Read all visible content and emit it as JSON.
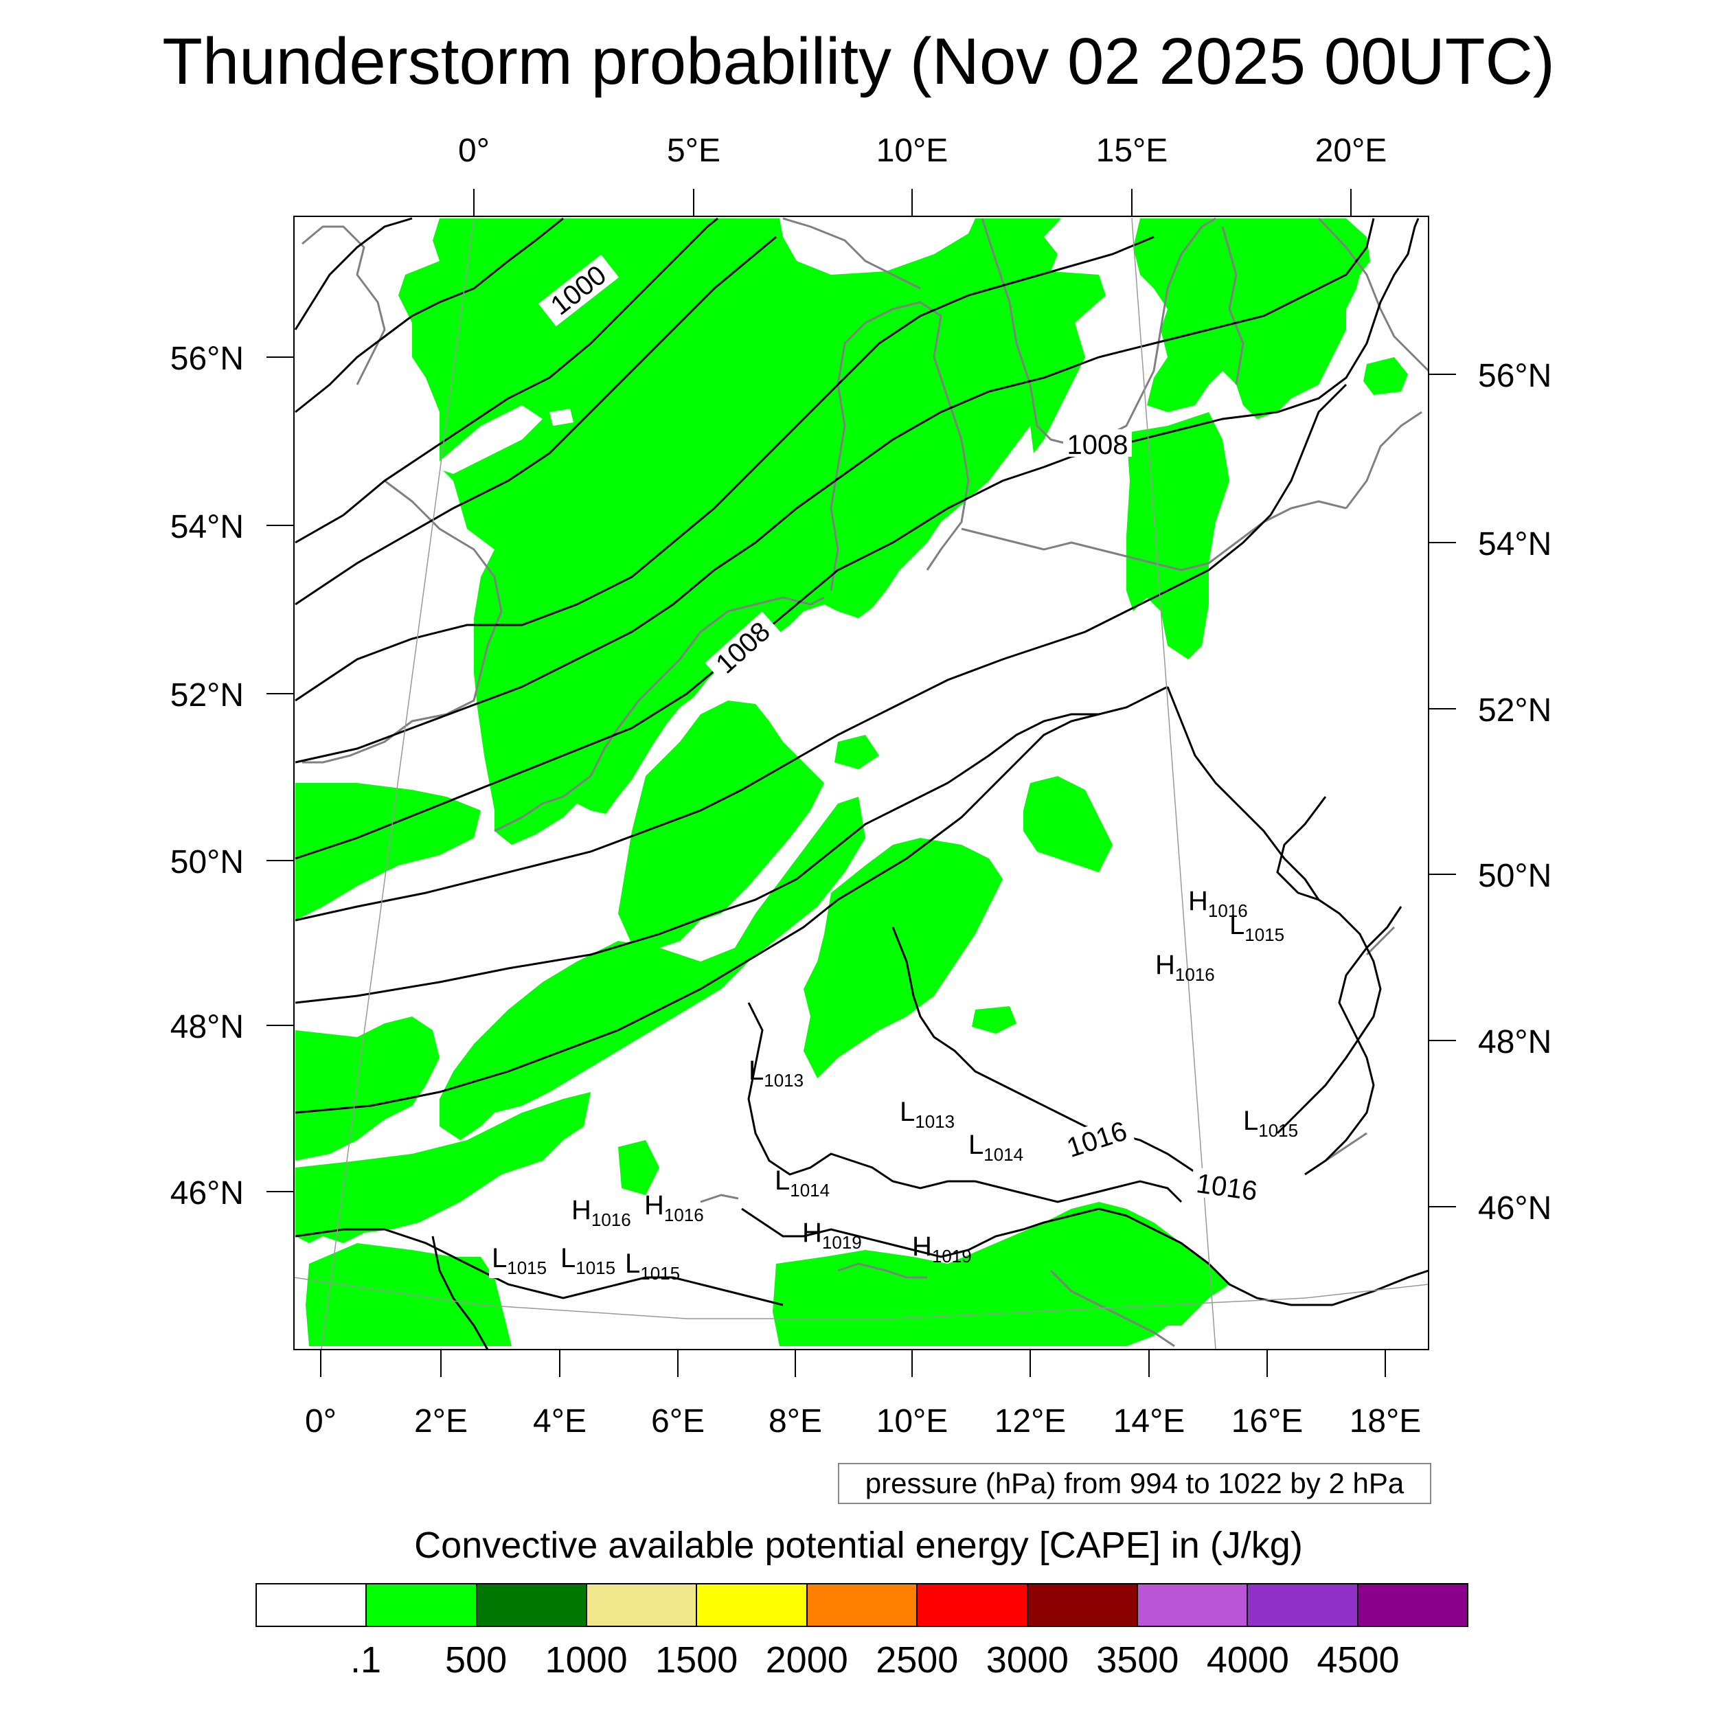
{
  "title": "Thunderstorm probability (Nov 02 2025 00UTC)",
  "top_lon_labels": [
    "0°",
    "5°E",
    "10°E",
    "15°E",
    "20°E"
  ],
  "bottom_lon_labels": [
    "0°",
    "2°E",
    "4°E",
    "6°E",
    "8°E",
    "10°E",
    "12°E",
    "14°E",
    "16°E",
    "18°E"
  ],
  "left_lat_labels": [
    "56°N",
    "54°N",
    "52°N",
    "50°N",
    "48°N",
    "46°N"
  ],
  "right_lat_labels": [
    "56°N",
    "54°N",
    "52°N",
    "50°N",
    "48°N",
    "46°N"
  ],
  "isobar_labels": [
    "1000",
    "1008",
    "1008",
    "1016",
    "1016"
  ],
  "pressure_centers": [
    {
      "letter": "H",
      "value": "1016"
    },
    {
      "letter": "L",
      "value": "1015"
    },
    {
      "letter": "H",
      "value": "1016"
    },
    {
      "letter": "L",
      "value": "1013"
    },
    {
      "letter": "L",
      "value": "1013"
    },
    {
      "letter": "L",
      "value": "1014"
    },
    {
      "letter": "L",
      "value": "1014"
    },
    {
      "letter": "L",
      "value": "1015"
    },
    {
      "letter": "H",
      "value": "1016"
    },
    {
      "letter": "H",
      "value": "1016"
    },
    {
      "letter": "H",
      "value": "1019"
    },
    {
      "letter": "H",
      "value": "1019"
    },
    {
      "letter": "L",
      "value": "1015"
    },
    {
      "letter": "L",
      "value": "1015"
    },
    {
      "letter": "L",
      "value": "1015"
    }
  ],
  "contour_note": "pressure (hPa) from 994 to 1022 by 2 hPa",
  "colorbar": {
    "title": "Convective available potential energy [CAPE] in (J/kg)",
    "colors": [
      "#ffffff",
      "#00ff00",
      "#007800",
      "#f0e68c",
      "#ffff00",
      "#ff8000",
      "#ff0000",
      "#8b0000",
      "#b955d6",
      "#9030c8",
      "#8b008b"
    ],
    "tick_labels": [
      ".1",
      "500",
      "1000",
      "1500",
      "2000",
      "2500",
      "3000",
      "3500",
      "4000",
      "4500"
    ]
  },
  "colors": {
    "cape_fill": "#00ff00",
    "coastline": "#808080",
    "isobar": "#000000"
  }
}
